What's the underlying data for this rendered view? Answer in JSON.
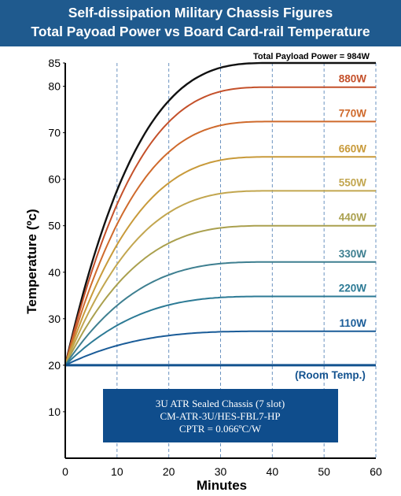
{
  "header": {
    "title_line1": "Self-dissipation Military Chassis Figures",
    "title_line2": "Total Payoad Power vs Board Card-rail Temperature"
  },
  "colors": {
    "header_bg": "#1f5a8e",
    "info_box_bg": "#0f4d8c",
    "room_temp": "#12528f",
    "grid": "#6b93c0"
  },
  "info_box": {
    "line1": "3U ATR Sealed Chassis (7 slot)",
    "line2": "CM-ATR-3U/HES-FBL7-HP",
    "line3": "CPTR = 0.066ºC/W"
  },
  "chart_data": {
    "type": "line",
    "xlabel": "Minutes",
    "ylabel": "Temperature (ºc)",
    "xlim": [
      0,
      60
    ],
    "ylim": [
      0,
      85
    ],
    "x_ticks": [
      0,
      10,
      20,
      30,
      40,
      50,
      60
    ],
    "y_ticks": [
      10,
      20,
      30,
      40,
      50,
      60,
      70,
      80,
      85
    ],
    "grid": "vertical dashed at x ticks",
    "plateau_minute": 40,
    "series": [
      {
        "name": "Total Payload Power = 984W",
        "label": "Total Payload Power = 984W",
        "start": 20,
        "final": 85,
        "color": "#111111"
      },
      {
        "name": "880W",
        "label": "880W",
        "start": 20,
        "final": 79.8,
        "color": "#c4502a"
      },
      {
        "name": "770W",
        "label": "770W",
        "start": 20,
        "final": 72.4,
        "color": "#cf6a2c"
      },
      {
        "name": "660W",
        "label": "660W",
        "start": 20,
        "final": 64.8,
        "color": "#c89a3a"
      },
      {
        "name": "550W",
        "label": "550W",
        "start": 20,
        "final": 57.5,
        "color": "#c2a64f"
      },
      {
        "name": "440W",
        "label": "440W",
        "start": 20,
        "final": 50,
        "color": "#aaa04e"
      },
      {
        "name": "330W",
        "label": "330W",
        "start": 20,
        "final": 42.2,
        "color": "#3e7f90"
      },
      {
        "name": "220W",
        "label": "220W",
        "start": 20,
        "final": 34.8,
        "color": "#2c7a95"
      },
      {
        "name": "110W",
        "label": "110W",
        "start": 20,
        "final": 27.3,
        "color": "#1a5c98"
      },
      {
        "name": "(Room Temp.)",
        "label": "(Room Temp.)",
        "start": 20,
        "final": 20,
        "color": "#12528f"
      }
    ]
  }
}
